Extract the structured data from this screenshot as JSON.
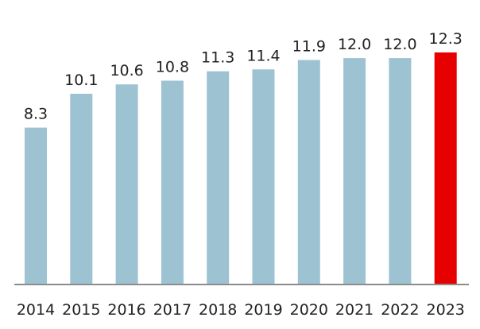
{
  "chart_data": {
    "type": "bar",
    "categories": [
      "2014",
      "2015",
      "2016",
      "2017",
      "2018",
      "2019",
      "2020",
      "2021",
      "2022",
      "2023"
    ],
    "values": [
      8.3,
      10.1,
      10.6,
      10.8,
      11.3,
      11.4,
      11.9,
      12.0,
      12.0,
      12.3
    ],
    "value_labels": [
      "8.3",
      "10.1",
      "10.6",
      "10.8",
      "11.3",
      "11.4",
      "11.9",
      "12.0",
      "12.0",
      "12.3"
    ],
    "title": "",
    "xlabel": "",
    "ylabel": "",
    "ylim": [
      0,
      12.3
    ],
    "grid": false,
    "y_axis_visible": false,
    "colors": {
      "default_bar": "#9dc3d3",
      "highlight_bar": "#e60000",
      "baseline": "#8c8c8c"
    },
    "highlight_categories": [
      "2023"
    ]
  }
}
